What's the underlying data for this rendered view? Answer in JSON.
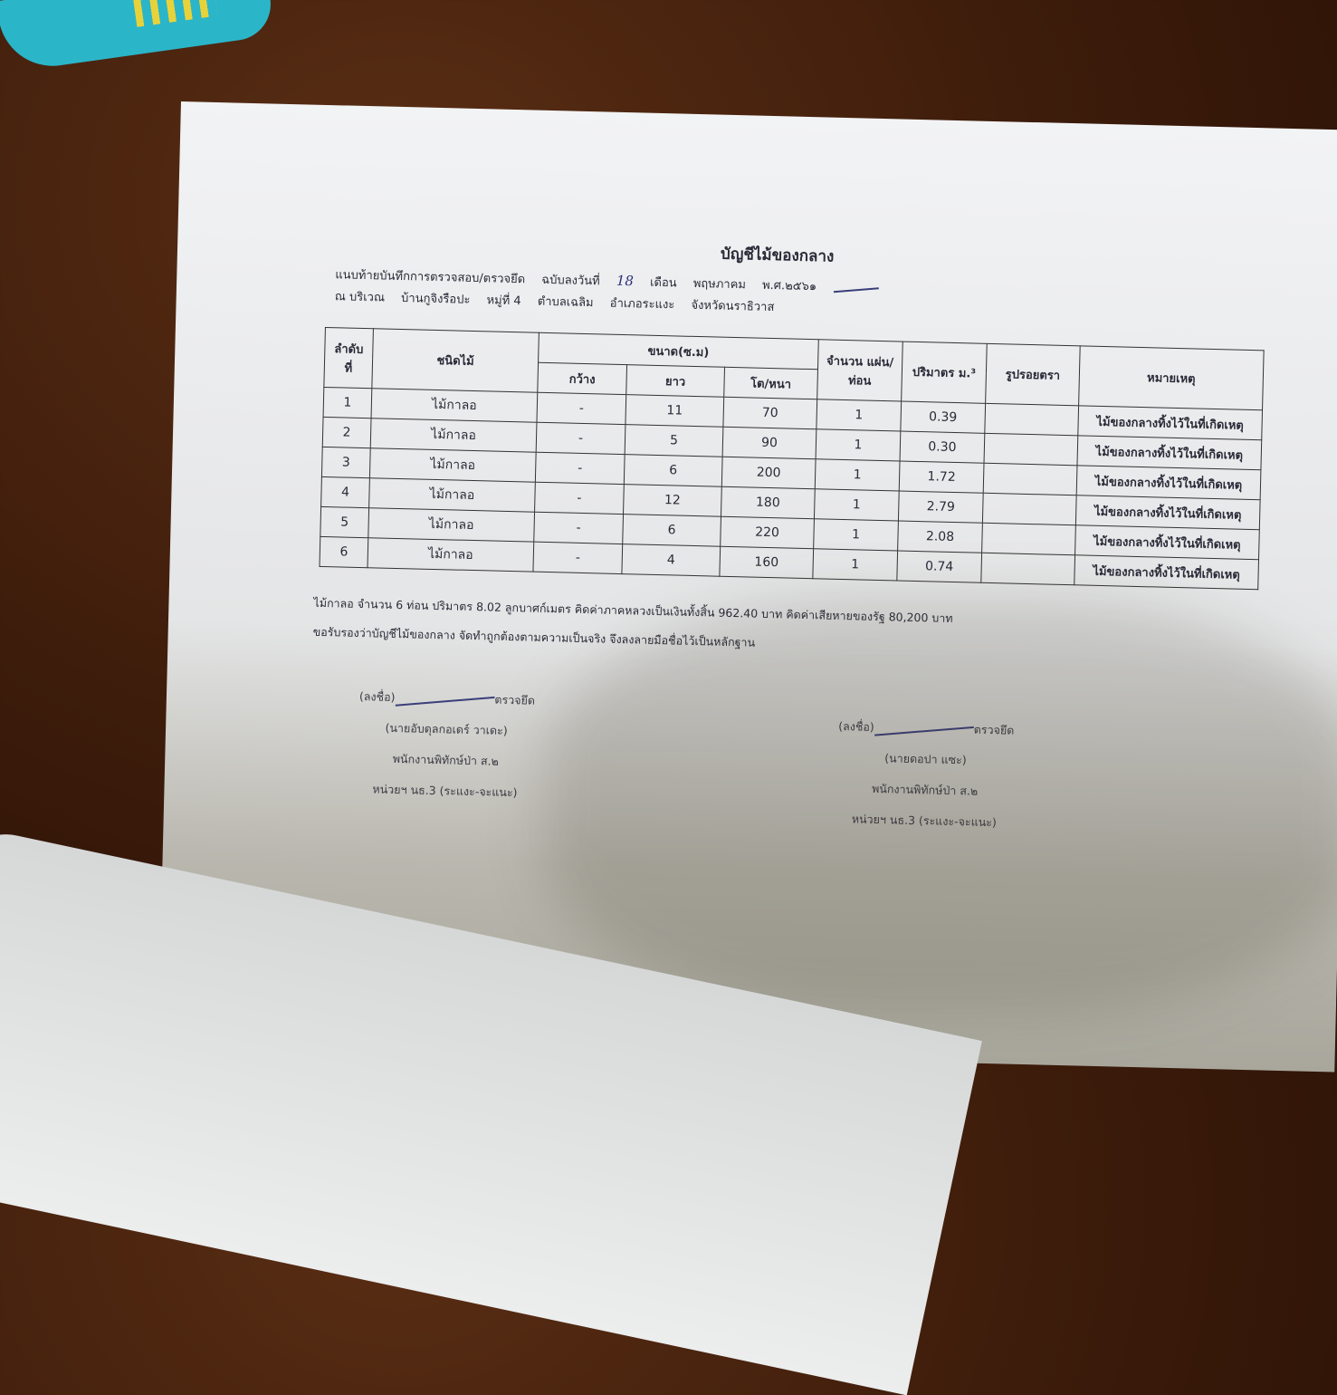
{
  "document": {
    "title": "บัญชีไม้ของกลาง",
    "header_line1": {
      "prefix": "แนบท้ายบันทึกการตรวจสอบ/ตรวจยึด",
      "dated_label": "ฉบับลงวันที่",
      "day": "18",
      "month_label": "เดือน",
      "month": "พฤษภาคม",
      "year": "พ.ศ.๒๕๖๑"
    },
    "header_line2": {
      "location_label": "ณ บริเวณ",
      "village": "บ้านกูจิงรือปะ",
      "moo": "หมู่ที่ 4",
      "tambon": "ตำบลเฉลิม",
      "amphoe": "อำเภอระแงะ",
      "province": "จังหวัดนราธิวาส"
    },
    "table": {
      "headers": {
        "no": "ลำดับที่",
        "species": "ชนิดไม้",
        "size": "ขนาด(ซ.ม)",
        "width": "กว้าง",
        "length": "ยาว",
        "diameter": "โต/หนา",
        "count": "จำนวน แผ่น/ท่อน",
        "volume": "ปริมาตร ม.³",
        "stamp": "รูปรอยตรา",
        "remark": "หมายเหตุ"
      },
      "rows": [
        {
          "no": "1",
          "species": "ไม้กาลอ",
          "width": "-",
          "length": "11",
          "diameter": "70",
          "count": "1",
          "volume": "0.39",
          "stamp": "",
          "remark": "ไม้ของกลางทิ้งไว้ในที่เกิดเหตุ"
        },
        {
          "no": "2",
          "species": "ไม้กาลอ",
          "width": "-",
          "length": "5",
          "diameter": "90",
          "count": "1",
          "volume": "0.30",
          "stamp": "",
          "remark": "ไม้ของกลางทิ้งไว้ในที่เกิดเหตุ"
        },
        {
          "no": "3",
          "species": "ไม้กาลอ",
          "width": "-",
          "length": "6",
          "diameter": "200",
          "count": "1",
          "volume": "1.72",
          "stamp": "",
          "remark": "ไม้ของกลางทิ้งไว้ในที่เกิดเหตุ"
        },
        {
          "no": "4",
          "species": "ไม้กาลอ",
          "width": "-",
          "length": "12",
          "diameter": "180",
          "count": "1",
          "volume": "2.79",
          "stamp": "",
          "remark": "ไม้ของกลางทิ้งไว้ในที่เกิดเหตุ"
        },
        {
          "no": "5",
          "species": "ไม้กาลอ",
          "width": "-",
          "length": "6",
          "diameter": "220",
          "count": "1",
          "volume": "2.08",
          "stamp": "",
          "remark": "ไม้ของกลางทิ้งไว้ในที่เกิดเหตุ"
        },
        {
          "no": "6",
          "species": "ไม้กาลอ",
          "width": "-",
          "length": "4",
          "diameter": "160",
          "count": "1",
          "volume": "0.74",
          "stamp": "",
          "remark": "ไม้ของกลางทิ้งไว้ในที่เกิดเหตุ"
        }
      ]
    },
    "summary_line1": "ไม้กาลอ จำนวน 6 ท่อน ปริมาตร 8.02 ลูกบาศก์เมตร  คิดค่าภาคหลวงเป็นเงินทั้งสิ้น 962.40 บาท คิดค่าเสียหายของรัฐ 80,200 บาท",
    "summary_line2": "ขอรับรองว่าบัญชีไม้ของกลาง จัดทำถูกต้องตามความเป็นจริง จึงลงลายมือชื่อไว้เป็นหลักฐาน",
    "signatures": [
      {
        "sign_label": "(ลงชื่อ)",
        "role": "ตรวจยึด",
        "name": "(นายอับดุลกอเดร์ วาเดะ)",
        "position": "พนักงานพิทักษ์ป่า ส.๒",
        "unit": "หน่วยฯ นธ.3 (ระแงะ-จะแนะ)"
      },
      {
        "sign_label": "(ลงชื่อ)",
        "role": "ตรวจยึด",
        "name": "(นายดอปา แซะ)",
        "position": "พนักงานพิทักษ์ป่า ส.๒",
        "unit": "หน่วยฯ นธ.3 (ระแงะ-จะแนะ)"
      }
    ]
  }
}
